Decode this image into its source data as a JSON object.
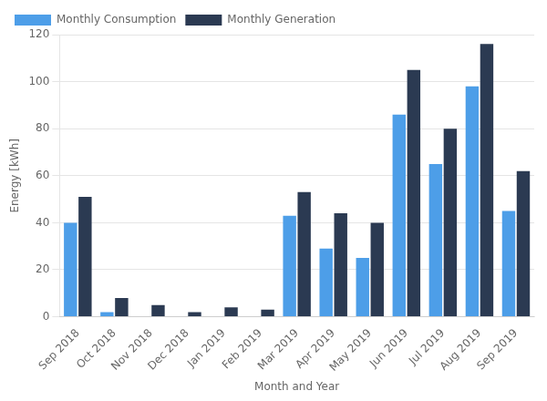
{
  "chart_data": {
    "type": "bar",
    "categories": [
      "Sep 2018",
      "Oct 2018",
      "Nov 2018",
      "Dec 2018",
      "Jan 2019",
      "Feb 2019",
      "Mar 2019",
      "Apr 2019",
      "May 2019",
      "Jun 2019",
      "Jul 2019",
      "Aug 2019",
      "Sep 2019"
    ],
    "series": [
      {
        "name": "Monthly Consumption",
        "color": "#4D9EE8",
        "values": [
          40,
          2,
          0,
          0,
          0,
          0,
          43,
          29,
          25,
          86,
          65,
          98,
          45
        ]
      },
      {
        "name": "Monthly Generation",
        "color": "#2B3A52",
        "values": [
          51,
          8,
          5,
          2,
          4,
          3,
          53,
          44,
          40,
          105,
          80,
          116,
          62
        ]
      }
    ],
    "x_label": "Month and Year",
    "y_label": "Energy [kWh]",
    "ylim": [
      0,
      120
    ],
    "yticks": [
      0,
      20,
      40,
      60,
      80,
      100,
      120
    ],
    "grid": true,
    "legend": "upper left"
  }
}
